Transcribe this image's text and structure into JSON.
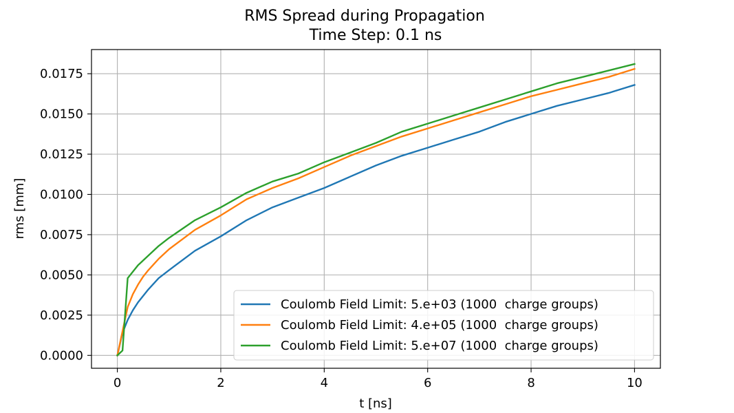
{
  "chart_data": {
    "type": "line",
    "title": "RMS Spread during Propagation",
    "subtitle": "Time Step: 0.1 ns",
    "xlabel": "t [ns]",
    "ylabel": "rms [mm]",
    "xlim": [
      -0.5,
      10.5
    ],
    "ylim": [
      -0.0008,
      0.019
    ],
    "xticks": [
      0,
      2,
      4,
      6,
      8,
      10
    ],
    "xtick_labels": [
      "0",
      "2",
      "4",
      "6",
      "8",
      "10"
    ],
    "yticks": [
      0.0,
      0.0025,
      0.005,
      0.0075,
      0.01,
      0.0125,
      0.015,
      0.0175
    ],
    "ytick_labels": [
      "0.0000",
      "0.0025",
      "0.0050",
      "0.0075",
      "0.0100",
      "0.0125",
      "0.0150",
      "0.0175"
    ],
    "grid": true,
    "legend_position": "lower-right",
    "series": [
      {
        "name": "Coulomb Field Limit: 5.e+03 (1000  charge groups)",
        "color": "#1f77b4",
        "x": [
          0,
          0.1,
          0.2,
          0.3,
          0.4,
          0.5,
          0.6,
          0.8,
          1.0,
          1.5,
          2.0,
          2.5,
          3.0,
          3.5,
          4.0,
          4.5,
          5.0,
          5.5,
          6.0,
          6.5,
          7.0,
          7.5,
          8.0,
          8.5,
          9.0,
          9.5,
          10.0
        ],
        "y": [
          0.0,
          0.0014,
          0.0022,
          0.0028,
          0.0033,
          0.0037,
          0.0041,
          0.0048,
          0.0053,
          0.0065,
          0.0074,
          0.0084,
          0.0092,
          0.0098,
          0.0104,
          0.0111,
          0.0118,
          0.0124,
          0.0129,
          0.0134,
          0.0139,
          0.0145,
          0.015,
          0.0155,
          0.0159,
          0.0163,
          0.0168
        ]
      },
      {
        "name": "Coulomb Field Limit: 4.e+05 (1000  charge groups)",
        "color": "#ff7f0e",
        "x": [
          0,
          0.1,
          0.2,
          0.3,
          0.4,
          0.5,
          0.6,
          0.8,
          1.0,
          1.5,
          2.0,
          2.5,
          3.0,
          3.5,
          4.0,
          4.5,
          5.0,
          5.5,
          6.0,
          6.5,
          7.0,
          7.5,
          8.0,
          8.5,
          9.0,
          9.5,
          10.0
        ],
        "y": [
          0.0,
          0.0015,
          0.003,
          0.0038,
          0.0044,
          0.0049,
          0.0053,
          0.006,
          0.0066,
          0.0078,
          0.0087,
          0.0097,
          0.0104,
          0.011,
          0.0117,
          0.0124,
          0.013,
          0.0136,
          0.0141,
          0.0146,
          0.0151,
          0.0156,
          0.0161,
          0.0165,
          0.0169,
          0.0173,
          0.0178
        ]
      },
      {
        "name": "Coulomb Field Limit: 5.e+07 (1000  charge groups)",
        "color": "#2ca02c",
        "x": [
          0,
          0.1,
          0.2,
          0.3,
          0.4,
          0.5,
          0.6,
          0.8,
          1.0,
          1.5,
          2.0,
          2.5,
          3.0,
          3.5,
          4.0,
          4.5,
          5.0,
          5.5,
          6.0,
          6.5,
          7.0,
          7.5,
          8.0,
          8.5,
          9.0,
          9.5,
          10.0
        ],
        "y": [
          0.0,
          0.0003,
          0.0048,
          0.0052,
          0.0056,
          0.0059,
          0.0062,
          0.0068,
          0.0073,
          0.0084,
          0.0092,
          0.0101,
          0.0108,
          0.0113,
          0.012,
          0.0126,
          0.0132,
          0.0139,
          0.0144,
          0.0149,
          0.0154,
          0.0159,
          0.0164,
          0.0169,
          0.0173,
          0.0177,
          0.0181
        ]
      }
    ]
  }
}
